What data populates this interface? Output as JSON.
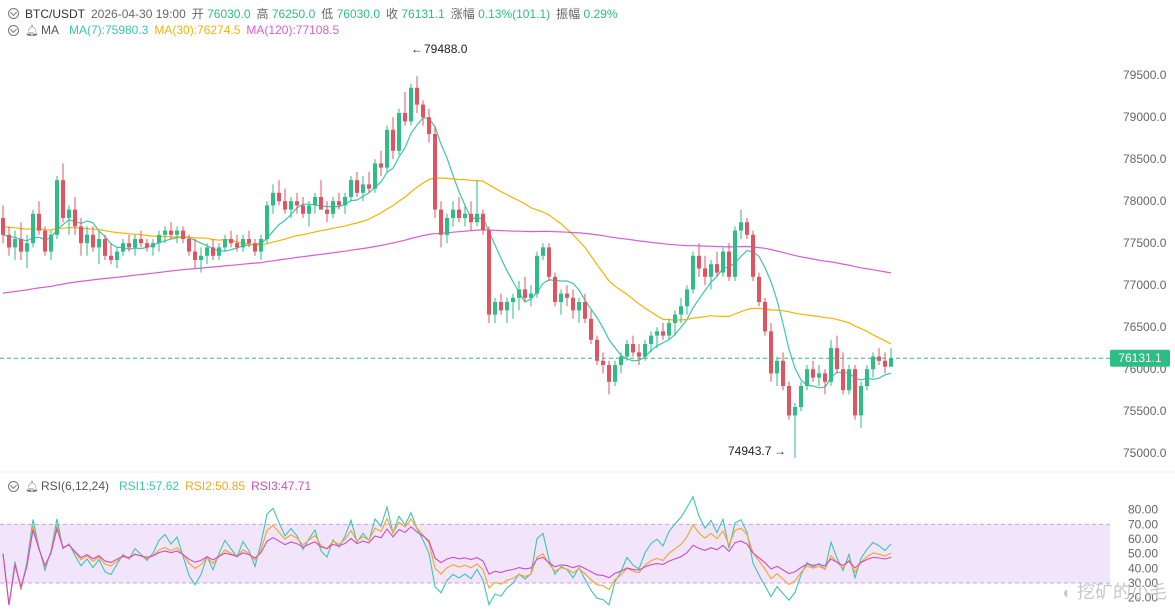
{
  "header": {
    "symbol": "BTC/USDT",
    "datetime": "2026-04-30 19:00",
    "open_label": "开",
    "open": "76030.0",
    "high_label": "高",
    "high": "76250.0",
    "low_label": "低",
    "low": "76030.0",
    "close_label": "收",
    "close": "76131.1",
    "change_label": "涨幅",
    "change": "0.13%(101.1)",
    "amplitude_label": "振幅",
    "amplitude": "0.29%"
  },
  "ma_legend": {
    "label": "MA",
    "ma7": "MA(7):75980.3",
    "ma30": "MA(30):76274.5",
    "ma120": "MA(120):77108.5"
  },
  "rsi_legend": {
    "label": "RSI(6,12,24)",
    "rsi1": "RSI1:57.62",
    "rsi2": "RSI2:50.85",
    "rsi3": "RSI3:47.71"
  },
  "colors": {
    "up": "#2ebd85",
    "down": "#e05461",
    "ma7": "#3cc6b4",
    "ma30": "#f5b400",
    "ma120": "#d65ed5",
    "rsi1": "#3cc6b4",
    "rsi2": "#f5a623",
    "rsi3": "#d14bc9"
  },
  "watermark": "挖矿的小毛",
  "chart_data": [
    {
      "type": "candlestick",
      "title": "BTC/USDT 1h",
      "ylim": [
        74800,
        79800
      ],
      "y_ticks": [
        75000,
        75500,
        76000,
        76500,
        77000,
        77500,
        78000,
        78500,
        79000,
        79500
      ],
      "y_tick_labels": [
        "75000.0",
        "75500.0",
        "76000.0",
        "76500.0",
        "77000.0",
        "77500.0",
        "78000.0",
        "78500.0",
        "79000.0",
        "79500.0"
      ],
      "last_price": 76131.1,
      "last_price_label": "76131.1",
      "max_annotation": {
        "value": 79488.0,
        "label": "79488.0",
        "index": 69
      },
      "min_annotation": {
        "value": 74943.7,
        "label": "74943.7",
        "index": 132
      },
      "candles": [
        [
          77800,
          77950,
          77500,
          77600
        ],
        [
          77600,
          77700,
          77350,
          77450
        ],
        [
          77450,
          77650,
          77300,
          77550
        ],
        [
          77550,
          77750,
          77300,
          77400
        ],
        [
          77400,
          77600,
          77200,
          77500
        ],
        [
          77500,
          77900,
          77450,
          77850
        ],
        [
          77850,
          78000,
          77600,
          77650
        ],
        [
          77650,
          77700,
          77350,
          77400
        ],
        [
          77400,
          77650,
          77300,
          77600
        ],
        [
          77600,
          78300,
          77550,
          78250
        ],
        [
          78250,
          78450,
          77750,
          77800
        ],
        [
          77800,
          77950,
          77600,
          77900
        ],
        [
          77900,
          78050,
          77600,
          77700
        ],
        [
          77700,
          77800,
          77350,
          77500
        ],
        [
          77500,
          77700,
          77350,
          77600
        ],
        [
          77600,
          77700,
          77400,
          77450
        ],
        [
          77450,
          77650,
          77250,
          77550
        ],
        [
          77550,
          77600,
          77300,
          77350
        ],
        [
          77350,
          77500,
          77250,
          77300
        ],
        [
          77300,
          77450,
          77200,
          77400
        ],
        [
          77400,
          77550,
          77350,
          77500
        ],
        [
          77500,
          77600,
          77400,
          77450
        ],
        [
          77450,
          77600,
          77350,
          77550
        ],
        [
          77550,
          77650,
          77450,
          77500
        ],
        [
          77500,
          77550,
          77400,
          77450
        ],
        [
          77450,
          77550,
          77350,
          77500
        ],
        [
          77500,
          77650,
          77400,
          77600
        ],
        [
          77600,
          77700,
          77500,
          77650
        ],
        [
          77650,
          77750,
          77550,
          77600
        ],
        [
          77600,
          77700,
          77500,
          77650
        ],
        [
          77650,
          77700,
          77500,
          77550
        ],
        [
          77550,
          77600,
          77350,
          77400
        ],
        [
          77400,
          77550,
          77200,
          77300
        ],
        [
          77300,
          77450,
          77150,
          77350
        ],
        [
          77350,
          77500,
          77250,
          77450
        ],
        [
          77450,
          77550,
          77300,
          77350
        ],
        [
          77350,
          77500,
          77300,
          77450
        ],
        [
          77450,
          77600,
          77400,
          77550
        ],
        [
          77550,
          77650,
          77450,
          77500
        ],
        [
          77500,
          77600,
          77400,
          77450
        ],
        [
          77450,
          77600,
          77400,
          77550
        ],
        [
          77550,
          77650,
          77450,
          77500
        ],
        [
          77500,
          77550,
          77350,
          77400
        ],
        [
          77400,
          77600,
          77300,
          77550
        ],
        [
          77550,
          78000,
          77500,
          77950
        ],
        [
          77950,
          78200,
          77850,
          78100
        ],
        [
          78100,
          78250,
          77950,
          78000
        ],
        [
          78000,
          78150,
          77850,
          77900
        ],
        [
          77900,
          78050,
          77800,
          78000
        ],
        [
          78000,
          78100,
          77850,
          77950
        ],
        [
          77950,
          78050,
          77800,
          77850
        ],
        [
          77850,
          78000,
          77700,
          77950
        ],
        [
          77950,
          78100,
          77850,
          78050
        ],
        [
          78050,
          78250,
          77950,
          77900
        ],
        [
          77900,
          78000,
          77750,
          77850
        ],
        [
          77850,
          78050,
          77800,
          78000
        ],
        [
          78000,
          78100,
          77900,
          77950
        ],
        [
          77950,
          78100,
          77850,
          78050
        ],
        [
          78050,
          78300,
          78000,
          78250
        ],
        [
          78250,
          78350,
          78050,
          78100
        ],
        [
          78100,
          78300,
          78000,
          78200
        ],
        [
          78200,
          78350,
          78100,
          78150
        ],
        [
          78150,
          78500,
          78100,
          78450
        ],
        [
          78450,
          78600,
          78300,
          78400
        ],
        [
          78400,
          78900,
          78350,
          78850
        ],
        [
          78850,
          79000,
          78500,
          78600
        ],
        [
          78600,
          79100,
          78550,
          79050
        ],
        [
          79050,
          79300,
          78900,
          78950
        ],
        [
          78950,
          79400,
          78900,
          79350
        ],
        [
          79350,
          79488,
          79050,
          79150
        ],
        [
          79150,
          79200,
          78900,
          79000
        ],
        [
          79000,
          79100,
          78700,
          78800
        ],
        [
          78800,
          78900,
          77800,
          77900
        ],
        [
          77900,
          78000,
          77450,
          77600
        ],
        [
          77600,
          77850,
          77500,
          77800
        ],
        [
          77800,
          78000,
          77700,
          77900
        ],
        [
          77900,
          78050,
          77750,
          77800
        ],
        [
          77800,
          77950,
          77700,
          77850
        ],
        [
          77850,
          78000,
          77650,
          77750
        ],
        [
          77750,
          78250,
          77700,
          77850
        ],
        [
          77850,
          77900,
          77600,
          77650
        ],
        [
          77650,
          77700,
          76550,
          76650
        ],
        [
          76650,
          76850,
          76550,
          76800
        ],
        [
          76800,
          76900,
          76650,
          76700
        ],
        [
          76700,
          76850,
          76550,
          76800
        ],
        [
          76800,
          76900,
          76600,
          76850
        ],
        [
          76850,
          77050,
          76700,
          76950
        ],
        [
          76950,
          77100,
          76800,
          76850
        ],
        [
          76850,
          77000,
          76750,
          76900
        ],
        [
          76900,
          77400,
          76850,
          77350
        ],
        [
          77350,
          77500,
          77300,
          77450
        ],
        [
          77450,
          77500,
          77050,
          77100
        ],
        [
          77100,
          77150,
          76750,
          76800
        ],
        [
          76800,
          76950,
          76650,
          76900
        ],
        [
          76900,
          77000,
          76750,
          76850
        ],
        [
          76850,
          76950,
          76600,
          76700
        ],
        [
          76700,
          76850,
          76550,
          76800
        ],
        [
          76800,
          76900,
          76550,
          76600
        ],
        [
          76600,
          76700,
          76300,
          76350
        ],
        [
          76350,
          76400,
          76050,
          76100
        ],
        [
          76100,
          76200,
          75950,
          76050
        ],
        [
          76050,
          76100,
          75700,
          75850
        ],
        [
          75850,
          76100,
          75800,
          76050
        ],
        [
          76050,
          76200,
          75950,
          76150
        ],
        [
          76150,
          76350,
          76100,
          76300
        ],
        [
          76300,
          76400,
          76150,
          76200
        ],
        [
          76200,
          76300,
          76050,
          76150
        ],
        [
          76150,
          76350,
          76100,
          76300
        ],
        [
          76300,
          76450,
          76200,
          76400
        ],
        [
          76400,
          76500,
          76250,
          76450
        ],
        [
          76450,
          76550,
          76350,
          76400
        ],
        [
          76400,
          76600,
          76350,
          76550
        ],
        [
          76550,
          76700,
          76400,
          76650
        ],
        [
          76650,
          76850,
          76550,
          76750
        ],
        [
          76750,
          77000,
          76650,
          76950
        ],
        [
          76950,
          77400,
          76900,
          77350
        ],
        [
          77350,
          77500,
          77100,
          77200
        ],
        [
          77200,
          77350,
          77000,
          77100
        ],
        [
          77100,
          77300,
          76950,
          77250
        ],
        [
          77250,
          77400,
          77100,
          77150
        ],
        [
          77150,
          77450,
          77100,
          77400
        ],
        [
          77400,
          77500,
          77050,
          77100
        ],
        [
          77100,
          77700,
          77050,
          77650
        ],
        [
          77650,
          77900,
          77550,
          77750
        ],
        [
          77750,
          77800,
          77550,
          77600
        ],
        [
          77600,
          77650,
          77050,
          77100
        ],
        [
          77100,
          77150,
          76750,
          76800
        ],
        [
          76800,
          76850,
          76400,
          76450
        ],
        [
          76450,
          76550,
          75850,
          75950
        ],
        [
          75950,
          76150,
          75800,
          76100
        ],
        [
          76100,
          76200,
          75750,
          75800
        ],
        [
          75800,
          75850,
          75400,
          75450
        ],
        [
          75450,
          75600,
          74943.7,
          75550
        ],
        [
          75550,
          75850,
          75500,
          75800
        ],
        [
          75800,
          76050,
          75750,
          76000
        ],
        [
          76000,
          76100,
          75850,
          75900
        ],
        [
          75900,
          76050,
          75800,
          75950
        ],
        [
          75950,
          76000,
          75700,
          75850
        ],
        [
          75850,
          76350,
          75800,
          76250
        ],
        [
          76250,
          76400,
          75950,
          76000
        ],
        [
          76000,
          76200,
          75700,
          75750
        ],
        [
          75750,
          76050,
          75700,
          76000
        ],
        [
          76000,
          76050,
          75400,
          75450
        ],
        [
          75450,
          75850,
          75300,
          75800
        ],
        [
          75800,
          76050,
          75750,
          76000
        ],
        [
          76000,
          76200,
          75900,
          76150
        ],
        [
          76150,
          76250,
          76050,
          76100
        ],
        [
          76100,
          76200,
          75950,
          76030
        ],
        [
          76030,
          76250,
          76030,
          76131.1
        ]
      ]
    },
    {
      "type": "line",
      "title": "RSI(6,12,24)",
      "ylim": [
        15,
        90
      ],
      "y_ticks": [
        20,
        30,
        40,
        50,
        60,
        70,
        80
      ],
      "y_tick_labels": [
        "20.00",
        "30.00",
        "40.00",
        "50.00",
        "60.00",
        "70.00",
        "80.00"
      ],
      "band": [
        30,
        70
      ],
      "series": [
        {
          "name": "RSI1",
          "last": 57.62
        },
        {
          "name": "RSI2",
          "last": 50.85
        },
        {
          "name": "RSI3",
          "last": 47.71
        }
      ]
    }
  ]
}
